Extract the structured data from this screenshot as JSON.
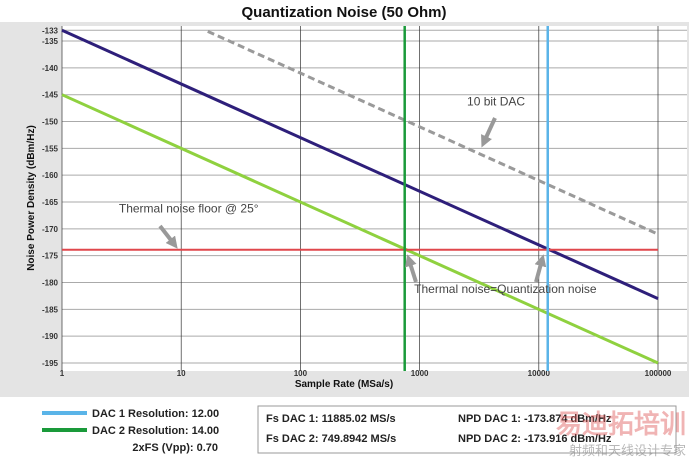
{
  "chart_data": {
    "type": "line",
    "title": "Quantization Noise (50 Ohm)",
    "xlabel": "Sample Rate (MSa/s)",
    "ylabel": "Noise Power Density (dBm/Hz)",
    "x_scale": "log",
    "xlim": [
      1,
      100000
    ],
    "ylim": [
      -195,
      -133
    ],
    "x_ticks": [
      1,
      10,
      100,
      1000,
      10000,
      100000
    ],
    "x_tick_labels": [
      "1",
      "10",
      "100",
      "1000",
      "10000",
      "100000"
    ],
    "y_ticks": [
      -133,
      -135,
      -140,
      -145,
      -150,
      -155,
      -160,
      -165,
      -170,
      -175,
      -180,
      -185,
      -190,
      -195
    ],
    "grid": true,
    "series": [
      {
        "id": "dac1",
        "x": [
          1,
          100000
        ],
        "y": [
          -133,
          -183
        ],
        "color": "#2e1f7a",
        "style": "solid"
      },
      {
        "id": "dac2",
        "x": [
          1,
          100000
        ],
        "y": [
          -145,
          -195
        ],
        "color": "#8fd13f",
        "style": "solid"
      },
      {
        "id": "dac10",
        "x": [
          16.7,
          100000
        ],
        "y": [
          -133.2,
          -171
        ],
        "color": "#9a9a9a",
        "style": "dashed"
      },
      {
        "id": "thermal",
        "x": [
          1,
          100000
        ],
        "y": [
          -173.9,
          -173.9
        ],
        "color": "#e0474c",
        "style": "solid"
      }
    ],
    "vertical_markers": [
      {
        "x": 749.8942,
        "color": "#1a9a3a"
      },
      {
        "x": 11885.02,
        "color": "#5ab4e8"
      }
    ],
    "annotations": [
      {
        "text": "10 bit DAC",
        "x": 2500,
        "y": -147
      },
      {
        "text": "Thermal noise floor @ 25°",
        "x": 3,
        "y": -167
      },
      {
        "text": "Thermal noise=Quantization noise",
        "x": 900,
        "y": -182
      }
    ]
  },
  "legend": {
    "items": [
      {
        "label": "DAC 1 Resolution: 12.00",
        "color": "#5ab4e8"
      },
      {
        "label": "DAC 2 Resolution: 14.00",
        "color": "#1a9a3a"
      }
    ],
    "fs_vpp": "2xFS (Vpp): 0.70"
  },
  "readout": {
    "fs_dac1": "Fs  DAC 1: 11885.02 MS/s",
    "fs_dac2": "Fs  DAC 2: 749.8942 MS/s",
    "npd_dac1": "NPD DAC 1: -173.874 dBm/Hz",
    "npd_dac2": "NPD DAC 2: -173.916 dBm/Hz"
  },
  "watermark": {
    "line1": "易迪拓培训",
    "line2": "射频和天线设计专家"
  }
}
